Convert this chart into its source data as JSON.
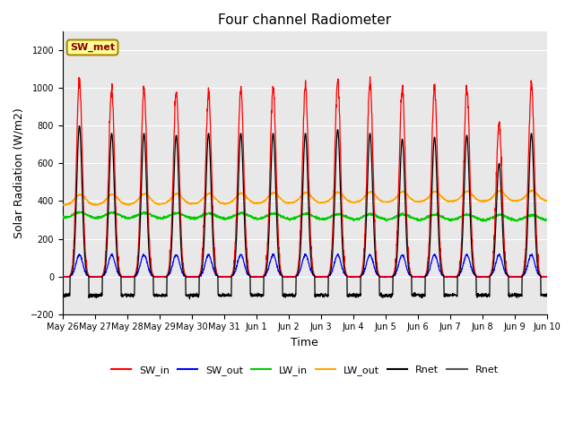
{
  "title": "Four channel Radiometer",
  "xlabel": "Time",
  "ylabel": "Solar Radiation (W/m2)",
  "ylim": [
    -200,
    1300
  ],
  "yticks": [
    -200,
    0,
    200,
    400,
    600,
    800,
    1000,
    1200
  ],
  "num_days": 15,
  "colors": {
    "SW_in": "#FF0000",
    "SW_out": "#0000FF",
    "LW_in": "#00CC00",
    "LW_out": "#FFA500",
    "Rnet_black": "#000000",
    "Rnet_dark": "#555555"
  },
  "annotation_text": "SW_met",
  "annotation_bg": "#FFFF99",
  "annotation_border": "#AA8800",
  "axes_bg": "#E8E8E8",
  "sw_in_peaks": [
    1040,
    995,
    995,
    985,
    975,
    995,
    1005,
    1010,
    1035,
    1035,
    1000,
    1005,
    1005,
    810,
    1025
  ],
  "rnet_peaks": [
    800,
    760,
    760,
    750,
    760,
    760,
    760,
    760,
    780,
    760,
    730,
    740,
    750,
    600,
    760
  ],
  "rnet_night": -100,
  "lw_in_base": 310,
  "lw_out_base": 380,
  "sw_out_peak": 115,
  "figwidth": 6.4,
  "figheight": 4.8,
  "dpi": 100
}
